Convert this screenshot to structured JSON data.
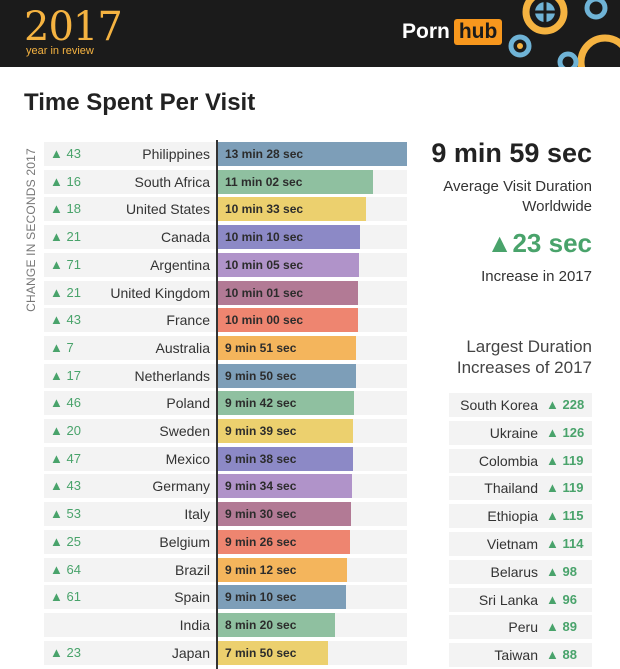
{
  "header": {
    "year": "2017",
    "subtitle": "year in review",
    "logo_part1": "Porn",
    "logo_part2": "hub",
    "colors": {
      "background": "#1b1b1b",
      "accent": "#f5b341",
      "logo_orange": "#f7971d"
    }
  },
  "title": "Time Spent Per Visit",
  "side_label": "CHANGE IN SECONDS 2017",
  "summary": {
    "worldwide_value": "9 min 59 sec",
    "worldwide_label_line1": "Average Visit Duration",
    "worldwide_label_line2": "Worldwide",
    "increase_value": "▲23 sec",
    "increase_label": "Increase in 2017",
    "largest_title_line1": "Largest Duration",
    "largest_title_line2": "Increases of 2017"
  },
  "chart_data": [
    {
      "type": "bar",
      "orientation": "horizontal",
      "title": "Time Spent Per Visit",
      "categories": [
        "Philippines",
        "South Africa",
        "United States",
        "Canada",
        "Argentina",
        "United Kingdom",
        "France",
        "Australia",
        "Netherlands",
        "Poland",
        "Sweden",
        "Mexico",
        "Germany",
        "Italy",
        "Belgium",
        "Brazil",
        "Spain",
        "India",
        "Japan"
      ],
      "labels": [
        "13 min 28 sec",
        "11 min 02 sec",
        "10 min 33 sec",
        "10 min 10 sec",
        "10 min 05 sec",
        "10 min 01 sec",
        "10 min 00 sec",
        "9 min 51 sec",
        "9 min 50 sec",
        "9 min 42 sec",
        "9 min 39 sec",
        "9 min 38 sec",
        "9 min 34 sec",
        "9 min 30 sec",
        "9 min 26 sec",
        "9 min 12 sec",
        "9 min 10 sec",
        "8 min 20 sec",
        "7 min 50 sec"
      ],
      "values_seconds": [
        808,
        662,
        633,
        610,
        605,
        601,
        600,
        591,
        590,
        582,
        579,
        578,
        574,
        570,
        566,
        552,
        550,
        500,
        470
      ],
      "change_labels": [
        "▲ 43",
        "▲ 16",
        "▲ 18",
        "▲ 21",
        "▲ 71",
        "▲ 21",
        "▲ 43",
        "▲ 7",
        "▲ 17",
        "▲ 46",
        "▲ 20",
        "▲ 47",
        "▲ 43",
        "▲ 53",
        "▲ 25",
        "▲ 64",
        "▲ 61",
        "",
        "▲ 23"
      ],
      "colors": [
        "#7d9eb8",
        "#8fc0a0",
        "#ecd06e",
        "#8c89c6",
        "#b093c9",
        "#b27a95",
        "#ee8570",
        "#f4b55c",
        "#7d9eb8",
        "#8fc0a0",
        "#ecd06e",
        "#8c89c6",
        "#b093c9",
        "#b27a95",
        "#ee8570",
        "#f4b55c",
        "#7d9eb8",
        "#8fc0a0",
        "#ecd06e"
      ],
      "xlim": [
        0,
        808
      ]
    },
    {
      "type": "table",
      "title": "Largest Duration Increases of 2017",
      "categories": [
        "South Korea",
        "Ukraine",
        "Colombia",
        "Thailand",
        "Ethiopia",
        "Vietnam",
        "Belarus",
        "Sri Lanka",
        "Peru",
        "Taiwan"
      ],
      "labels": [
        "▲ 228",
        "▲ 126",
        "▲ 119",
        "▲ 119",
        "▲ 115",
        "▲ 114",
        "▲ 98",
        "▲ 96",
        "▲ 89",
        "▲ 88"
      ],
      "values": [
        228,
        126,
        119,
        119,
        115,
        114,
        98,
        96,
        89,
        88
      ]
    }
  ]
}
